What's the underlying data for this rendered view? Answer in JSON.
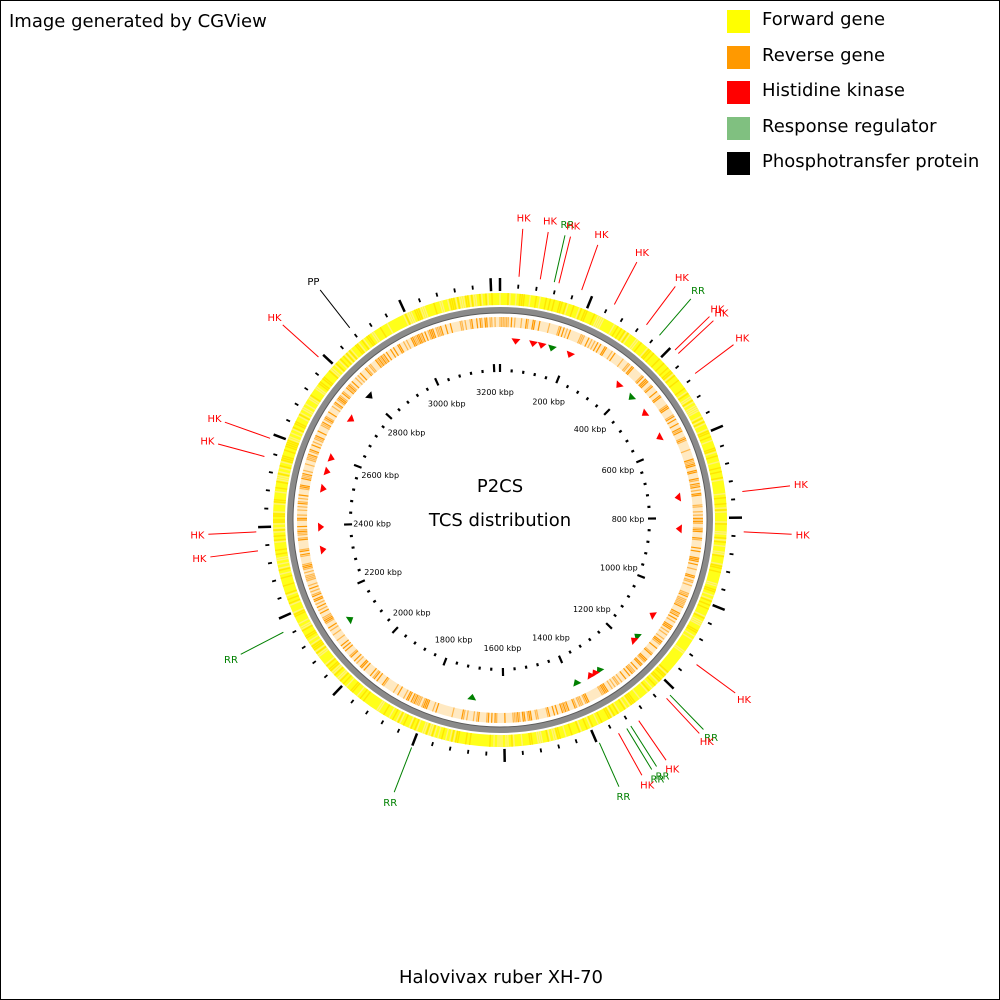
{
  "credit": "Image generated by CGView",
  "organism": "Halovivax ruber XH-70",
  "center": {
    "line1": "P2CS",
    "line2": "TCS distribution"
  },
  "legend": [
    {
      "label": "Forward gene",
      "color": "#ffff00"
    },
    {
      "label": "Reverse gene",
      "color": "#ff9900"
    },
    {
      "label": "Histidine kinase",
      "color": "#ff0000"
    },
    {
      "label": "Response regulator",
      "color": "#80c080"
    },
    {
      "label": "Phosphotransfer protein",
      "color": "#000000"
    }
  ],
  "colors": {
    "forward": "#ffff00",
    "reverse": "#ff9900",
    "backbone": "#7a7a7a",
    "hk": "#ff0000",
    "rr": "#008000",
    "pp": "#000000"
  },
  "genome": {
    "length_kbp": 3220
  },
  "ruler": {
    "labels": [
      "200 kbp",
      "400 kbp",
      "600 kbp",
      "800 kbp",
      "1000 kbp",
      "1200 kbp",
      "1400 kbp",
      "1600 kbp",
      "1800 kbp",
      "2000 kbp",
      "2200 kbp",
      "2400 kbp",
      "2600 kbp",
      "2800 kbp",
      "3000 kbp",
      "3200 kbp"
    ],
    "label_positions_kbp": [
      200,
      400,
      600,
      800,
      1000,
      1200,
      1400,
      1600,
      1800,
      2000,
      2200,
      2400,
      2600,
      2800,
      3000,
      3200
    ]
  },
  "features": [
    {
      "type": "HK",
      "label": "HK",
      "pos_kbp": 40
    },
    {
      "type": "HK",
      "label": "HK",
      "pos_kbp": 85
    },
    {
      "type": "RR",
      "label": "RR",
      "pos_kbp": 115
    },
    {
      "type": "HK",
      "label": "HK",
      "pos_kbp": 125
    },
    {
      "type": "HK",
      "label": "HK",
      "pos_kbp": 175
    },
    {
      "type": "HK",
      "label": "HK",
      "pos_kbp": 250
    },
    {
      "type": "HK",
      "label": "HK",
      "pos_kbp": 330
    },
    {
      "type": "RR",
      "label": "RR",
      "pos_kbp": 365
    },
    {
      "type": "HK",
      "label": "HK",
      "pos_kbp": 410
    },
    {
      "type": "HK",
      "label": "HK",
      "pos_kbp": 420
    },
    {
      "type": "HK",
      "label": "HK",
      "pos_kbp": 475
    },
    {
      "type": "HK",
      "label": "HK",
      "pos_kbp": 745
    },
    {
      "type": "HK",
      "label": "HK",
      "pos_kbp": 830
    },
    {
      "type": "HK",
      "label": "HK",
      "pos_kbp": 1130
    },
    {
      "type": "RR",
      "label": "RR",
      "pos_kbp": 1215
    },
    {
      "type": "HK",
      "label": "HK",
      "pos_kbp": 1225
    },
    {
      "type": "HK",
      "label": "HK",
      "pos_kbp": 1300
    },
    {
      "type": "RR",
      "label": "RR",
      "pos_kbp": 1320
    },
    {
      "type": "RR",
      "label": "RR",
      "pos_kbp": 1330
    },
    {
      "type": "HK",
      "label": "HK",
      "pos_kbp": 1350
    },
    {
      "type": "RR",
      "label": "RR",
      "pos_kbp": 1395
    },
    {
      "type": "RR",
      "label": "RR",
      "pos_kbp": 1800
    },
    {
      "type": "RR",
      "label": "RR",
      "pos_kbp": 2170
    },
    {
      "type": "HK",
      "label": "HK",
      "pos_kbp": 2350
    },
    {
      "type": "HK",
      "label": "HK",
      "pos_kbp": 2390
    },
    {
      "type": "HK",
      "label": "HK",
      "pos_kbp": 2550
    },
    {
      "type": "HK",
      "label": "HK",
      "pos_kbp": 2590
    },
    {
      "type": "HK",
      "label": "HK",
      "pos_kbp": 2790
    },
    {
      "type": "PP",
      "label": "PP",
      "pos_kbp": 2880
    }
  ],
  "inner_markers": [
    {
      "type": "HK",
      "pos_kbp": 45
    },
    {
      "type": "HK",
      "pos_kbp": 95
    },
    {
      "type": "HK",
      "pos_kbp": 120
    },
    {
      "type": "RR",
      "pos_kbp": 150
    },
    {
      "type": "HK",
      "pos_kbp": 205
    },
    {
      "type": "HK",
      "pos_kbp": 370
    },
    {
      "type": "RR",
      "pos_kbp": 420
    },
    {
      "type": "HK",
      "pos_kbp": 480
    },
    {
      "type": "HK",
      "pos_kbp": 560
    },
    {
      "type": "HK",
      "pos_kbp": 740
    },
    {
      "type": "HK",
      "pos_kbp": 830
    },
    {
      "type": "HK",
      "pos_kbp": 1090
    },
    {
      "type": "RR",
      "pos_kbp": 1165
    },
    {
      "type": "HK",
      "pos_kbp": 1180
    },
    {
      "type": "RR",
      "pos_kbp": 1310
    },
    {
      "type": "HK",
      "pos_kbp": 1325
    },
    {
      "type": "HK",
      "pos_kbp": 1340
    },
    {
      "type": "RR",
      "pos_kbp": 1385
    },
    {
      "type": "RR",
      "pos_kbp": 1690
    },
    {
      "type": "RR",
      "pos_kbp": 2115
    },
    {
      "type": "HK",
      "pos_kbp": 2330
    },
    {
      "type": "HK",
      "pos_kbp": 2395
    },
    {
      "type": "HK",
      "pos_kbp": 2505
    },
    {
      "type": "HK",
      "pos_kbp": 2555
    },
    {
      "type": "HK",
      "pos_kbp": 2595
    },
    {
      "type": "HK",
      "pos_kbp": 2720
    },
    {
      "type": "PP",
      "pos_kbp": 2805
    }
  ]
}
